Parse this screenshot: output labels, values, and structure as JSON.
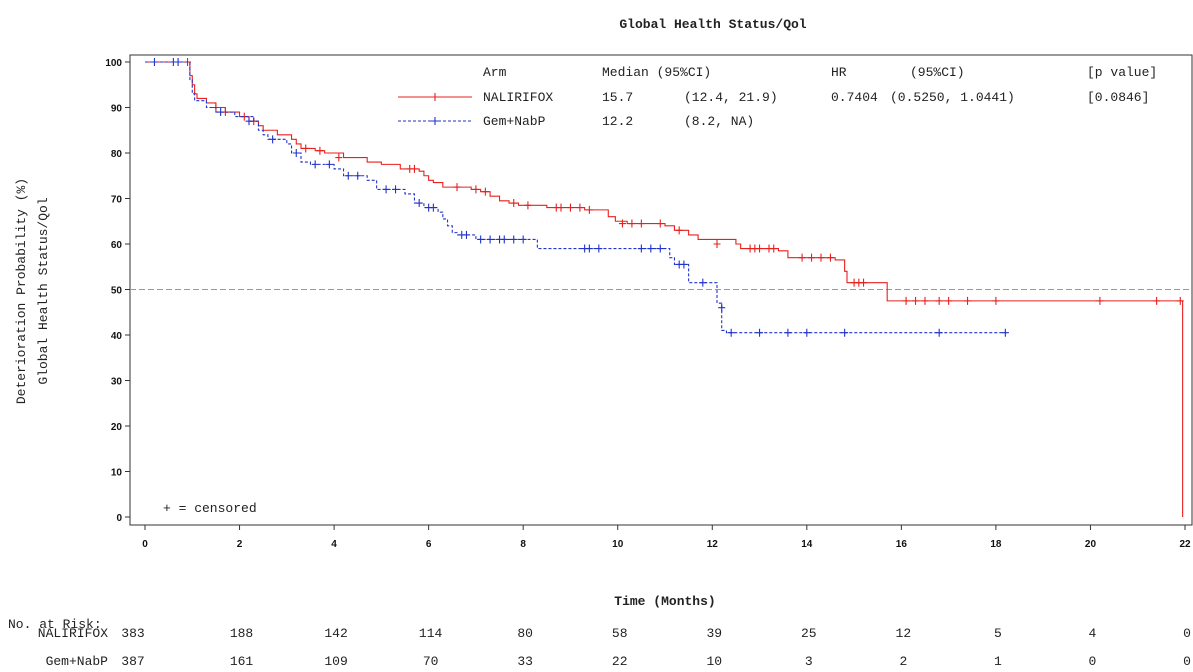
{
  "chart_data": {
    "type": "line",
    "title": "Global Health Status/Qol",
    "xlabel": "Time (Months)",
    "ylabel": [
      "Deterioration Probability (%)",
      "Global Health Status/Qol"
    ],
    "xlim": [
      0,
      22
    ],
    "ylim": [
      0,
      100
    ],
    "xticks": [
      0,
      2,
      4,
      6,
      8,
      10,
      12,
      14,
      16,
      18,
      20,
      22
    ],
    "yticks": [
      0,
      10,
      20,
      30,
      40,
      50,
      60,
      70,
      80,
      90,
      100
    ],
    "reference_line": {
      "y": 50,
      "style": "dashed"
    },
    "legend": {
      "placement": "top-right",
      "header": {
        "arm": "Arm",
        "median": "Median (95%CI)",
        "hr": "HR",
        "ci": "(95%CI)",
        "p": "[p value]"
      },
      "rows": [
        {
          "arm": "NALIRIFOX",
          "median": "15.7",
          "median_ci": "(12.4, 21.9)",
          "hr": "0.7404",
          "hr_ci": "(0.5250, 1.0441)",
          "p": "[0.0846]"
        },
        {
          "arm": "Gem+NabP",
          "median": "12.2",
          "median_ci": "(8.2, NA)",
          "hr": "",
          "hr_ci": "",
          "p": ""
        }
      ]
    },
    "censor_note": "+ = censored",
    "series": [
      {
        "name": "NALIRIFOX",
        "color": "#e8201e",
        "dash": "solid",
        "steps": [
          [
            0,
            100
          ],
          [
            0.95,
            97
          ],
          [
            1.0,
            95
          ],
          [
            1.05,
            93
          ],
          [
            1.1,
            92
          ],
          [
            1.3,
            91
          ],
          [
            1.5,
            90
          ],
          [
            1.7,
            89
          ],
          [
            2.0,
            88
          ],
          [
            2.2,
            87
          ],
          [
            2.4,
            86
          ],
          [
            2.5,
            85
          ],
          [
            2.8,
            84
          ],
          [
            3.1,
            83
          ],
          [
            3.2,
            82
          ],
          [
            3.3,
            81
          ],
          [
            3.6,
            80.5
          ],
          [
            3.8,
            80
          ],
          [
            4.2,
            79
          ],
          [
            4.7,
            78
          ],
          [
            5.0,
            77.5
          ],
          [
            5.4,
            76.5
          ],
          [
            5.8,
            76
          ],
          [
            5.9,
            75
          ],
          [
            6.0,
            74
          ],
          [
            6.1,
            73.5
          ],
          [
            6.3,
            72.5
          ],
          [
            6.9,
            72
          ],
          [
            7.1,
            71.5
          ],
          [
            7.3,
            70.5
          ],
          [
            7.5,
            69.5
          ],
          [
            7.7,
            69
          ],
          [
            7.9,
            68.5
          ],
          [
            8.5,
            68
          ],
          [
            9.3,
            67.5
          ],
          [
            9.8,
            66
          ],
          [
            9.95,
            65
          ],
          [
            10.2,
            64.5
          ],
          [
            11.0,
            64
          ],
          [
            11.2,
            63
          ],
          [
            11.5,
            62
          ],
          [
            11.7,
            61
          ],
          [
            12.5,
            60
          ],
          [
            12.6,
            59
          ],
          [
            13.4,
            58.5
          ],
          [
            13.6,
            57
          ],
          [
            14.6,
            56.5
          ],
          [
            14.8,
            54
          ],
          [
            14.85,
            51.5
          ],
          [
            15.7,
            47.5
          ],
          [
            21.95,
            0
          ]
        ],
        "censored": [
          [
            0.9,
            100
          ],
          [
            1.5,
            90
          ],
          [
            1.7,
            89
          ],
          [
            2.1,
            88
          ],
          [
            2.3,
            87
          ],
          [
            3.4,
            81
          ],
          [
            3.7,
            80.5
          ],
          [
            4.1,
            79
          ],
          [
            5.6,
            76.5
          ],
          [
            5.7,
            76.5
          ],
          [
            6.6,
            72.5
          ],
          [
            7.0,
            72
          ],
          [
            7.2,
            71.5
          ],
          [
            7.8,
            69
          ],
          [
            8.1,
            68.5
          ],
          [
            8.7,
            68
          ],
          [
            8.8,
            68
          ],
          [
            9.0,
            68
          ],
          [
            9.2,
            68
          ],
          [
            9.4,
            67.5
          ],
          [
            10.1,
            64.5
          ],
          [
            10.3,
            64.5
          ],
          [
            10.5,
            64.5
          ],
          [
            10.9,
            64.5
          ],
          [
            11.3,
            63
          ],
          [
            12.1,
            60
          ],
          [
            12.8,
            59
          ],
          [
            12.9,
            59
          ],
          [
            13.0,
            59
          ],
          [
            13.2,
            59
          ],
          [
            13.3,
            59
          ],
          [
            13.9,
            57
          ],
          [
            14.1,
            57
          ],
          [
            14.3,
            57
          ],
          [
            14.5,
            57
          ],
          [
            15.0,
            51.5
          ],
          [
            15.1,
            51.5
          ],
          [
            15.2,
            51.5
          ],
          [
            16.1,
            47.5
          ],
          [
            16.3,
            47.5
          ],
          [
            16.5,
            47.5
          ],
          [
            16.8,
            47.5
          ],
          [
            17.0,
            47.5
          ],
          [
            17.4,
            47.5
          ],
          [
            18.0,
            47.5
          ],
          [
            20.2,
            47.5
          ],
          [
            21.4,
            47.5
          ],
          [
            21.9,
            47.5
          ]
        ],
        "at_risk": [
          383,
          188,
          142,
          114,
          80,
          58,
          39,
          25,
          12,
          5,
          4,
          0
        ]
      },
      {
        "name": "Gem+NabP",
        "color": "#2233cc",
        "dash": "dashed",
        "steps": [
          [
            0,
            100
          ],
          [
            0.95,
            96
          ],
          [
            1.0,
            93
          ],
          [
            1.05,
            91.5
          ],
          [
            1.3,
            90
          ],
          [
            1.5,
            89
          ],
          [
            1.9,
            88
          ],
          [
            2.3,
            87
          ],
          [
            2.4,
            85
          ],
          [
            2.5,
            84
          ],
          [
            2.6,
            83
          ],
          [
            3.0,
            82
          ],
          [
            3.1,
            80
          ],
          [
            3.3,
            78
          ],
          [
            3.5,
            77.5
          ],
          [
            4.0,
            76.5
          ],
          [
            4.2,
            75
          ],
          [
            4.7,
            74
          ],
          [
            4.9,
            72
          ],
          [
            5.5,
            71
          ],
          [
            5.7,
            69
          ],
          [
            5.9,
            68
          ],
          [
            6.2,
            67
          ],
          [
            6.3,
            65.5
          ],
          [
            6.4,
            64
          ],
          [
            6.5,
            62.5
          ],
          [
            6.6,
            62
          ],
          [
            7.0,
            61
          ],
          [
            8.3,
            59
          ],
          [
            11.1,
            57
          ],
          [
            11.2,
            55.5
          ],
          [
            11.5,
            51.5
          ],
          [
            12.1,
            47
          ],
          [
            12.2,
            41
          ],
          [
            12.3,
            40.5
          ]
        ],
        "censored": [
          [
            0.2,
            100
          ],
          [
            0.6,
            100
          ],
          [
            0.7,
            100
          ],
          [
            1.6,
            89
          ],
          [
            2.2,
            87
          ],
          [
            2.7,
            83
          ],
          [
            3.2,
            80
          ],
          [
            3.6,
            77.5
          ],
          [
            3.9,
            77.5
          ],
          [
            4.3,
            75
          ],
          [
            4.5,
            75
          ],
          [
            5.1,
            72
          ],
          [
            5.3,
            72
          ],
          [
            5.8,
            69
          ],
          [
            6.0,
            68
          ],
          [
            6.1,
            68
          ],
          [
            6.7,
            62
          ],
          [
            6.8,
            62
          ],
          [
            7.1,
            61
          ],
          [
            7.3,
            61
          ],
          [
            7.5,
            61
          ],
          [
            7.6,
            61
          ],
          [
            7.8,
            61
          ],
          [
            8.0,
            61
          ],
          [
            9.3,
            59
          ],
          [
            9.4,
            59
          ],
          [
            9.6,
            59
          ],
          [
            10.5,
            59
          ],
          [
            10.7,
            59
          ],
          [
            10.9,
            59
          ],
          [
            11.3,
            55.5
          ],
          [
            11.4,
            55.5
          ],
          [
            11.8,
            51.5
          ],
          [
            12.2,
            46
          ],
          [
            12.4,
            40.5
          ],
          [
            13.0,
            40.5
          ],
          [
            13.6,
            40.5
          ],
          [
            14.0,
            40.5
          ],
          [
            14.8,
            40.5
          ],
          [
            16.8,
            40.5
          ],
          [
            18.2,
            40.5
          ]
        ],
        "at_risk": [
          387,
          161,
          109,
          70,
          33,
          22,
          10,
          3,
          2,
          1,
          0,
          0
        ]
      }
    ],
    "at_risk_title": "No. at Risk:"
  }
}
